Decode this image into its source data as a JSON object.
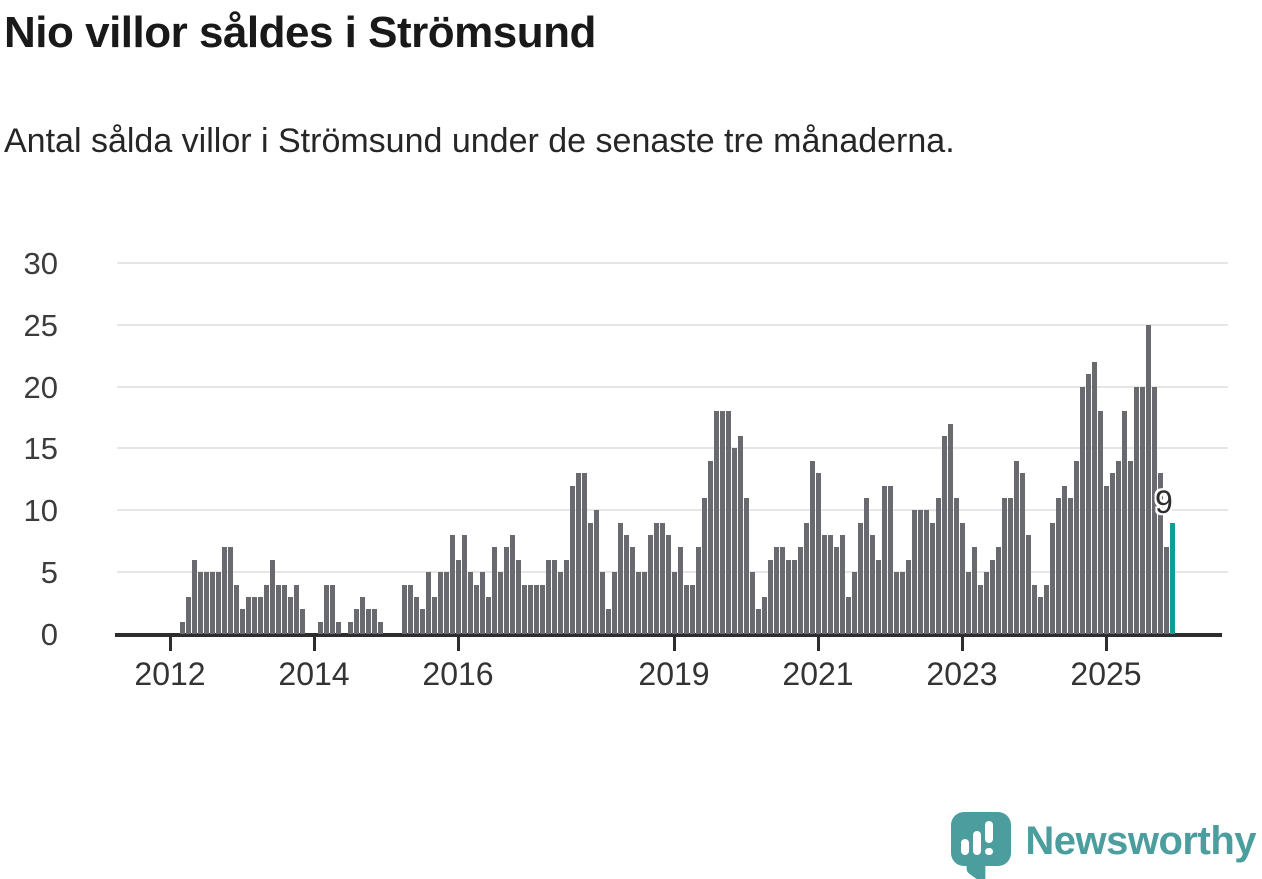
{
  "header": {
    "title": "Nio villor såldes i Strömsund",
    "subtitle": "Antal sålda villor i Strömsund under de senaste tre månaderna."
  },
  "footer": {
    "brand_name": "Newsworthy",
    "brand_color": "#4b9e9d"
  },
  "chart_data": {
    "type": "bar",
    "title": "Nio villor såldes i Strömsund",
    "subtitle": "Antal sålda villor i Strömsund under de senaste tre månaderna.",
    "xlabel": "",
    "ylabel": "",
    "ylim": [
      0,
      30
    ],
    "yticks": [
      0,
      5,
      10,
      15,
      20,
      25,
      30
    ],
    "xticks": [
      {
        "label": "2012",
        "month_index": -2
      },
      {
        "label": "2014",
        "month_index": 22
      },
      {
        "label": "2016",
        "month_index": 46
      },
      {
        "label": "2019",
        "month_index": 82
      },
      {
        "label": "2021",
        "month_index": 106
      },
      {
        "label": "2023",
        "month_index": 130
      },
      {
        "label": "2025",
        "month_index": 154
      }
    ],
    "grid": true,
    "legend": "none",
    "bar_color": "#696970",
    "highlight_color": "#0d9e9b",
    "highlight_last_bar": true,
    "highlight_value_label": "9",
    "series_start": "2012-03",
    "series_end": "2025-11",
    "years": [
      {
        "year": 2012,
        "start_month": 3,
        "values": [
          1,
          3,
          6,
          5,
          5,
          5,
          5,
          7,
          7,
          4
        ]
      },
      {
        "year": 2013,
        "start_month": 1,
        "values": [
          2,
          3,
          3,
          3,
          4,
          6,
          4,
          4,
          3,
          4,
          2,
          0
        ]
      },
      {
        "year": 2014,
        "start_month": 1,
        "values": [
          0,
          1,
          4,
          4,
          1,
          0,
          1,
          2,
          3,
          2,
          2,
          1
        ]
      },
      {
        "year": 2015,
        "start_month": 1,
        "values": [
          0,
          0,
          0,
          4,
          4,
          3,
          2,
          5,
          3,
          5,
          5,
          8
        ]
      },
      {
        "year": 2016,
        "start_month": 1,
        "values": [
          6,
          8,
          5,
          4,
          5,
          3,
          7,
          5,
          7,
          8,
          6,
          4
        ]
      },
      {
        "year": 2017,
        "start_month": 1,
        "values": [
          4,
          4,
          4,
          6,
          6,
          5,
          6,
          12,
          13,
          13,
          9,
          10
        ]
      },
      {
        "year": 2018,
        "start_month": 1,
        "values": [
          5,
          2,
          5,
          9,
          8,
          7,
          5,
          5,
          8,
          9,
          9,
          8
        ]
      },
      {
        "year": 2019,
        "start_month": 1,
        "values": [
          5,
          7,
          4,
          4,
          7,
          11,
          14,
          18,
          18,
          18,
          15,
          16
        ]
      },
      {
        "year": 2020,
        "start_month": 1,
        "values": [
          11,
          5,
          2,
          3,
          6,
          7,
          7,
          6,
          6,
          7,
          9,
          14
        ]
      },
      {
        "year": 2021,
        "start_month": 1,
        "values": [
          13,
          8,
          8,
          7,
          8,
          3,
          5,
          9,
          11,
          8,
          6,
          12
        ]
      },
      {
        "year": 2022,
        "start_month": 1,
        "values": [
          12,
          5,
          5,
          6,
          10,
          10,
          10,
          9,
          11,
          16,
          17,
          11
        ]
      },
      {
        "year": 2023,
        "start_month": 1,
        "values": [
          9,
          5,
          7,
          4,
          5,
          6,
          7,
          11,
          11,
          14,
          13,
          8
        ]
      },
      {
        "year": 2024,
        "start_month": 1,
        "values": [
          4,
          3,
          4,
          9,
          11,
          12,
          11,
          14,
          20,
          21,
          22,
          18
        ]
      },
      {
        "year": 2025,
        "start_month": 1,
        "values": [
          12,
          13,
          14,
          18,
          14,
          20,
          20,
          25,
          20,
          13,
          7,
          9
        ]
      }
    ]
  }
}
